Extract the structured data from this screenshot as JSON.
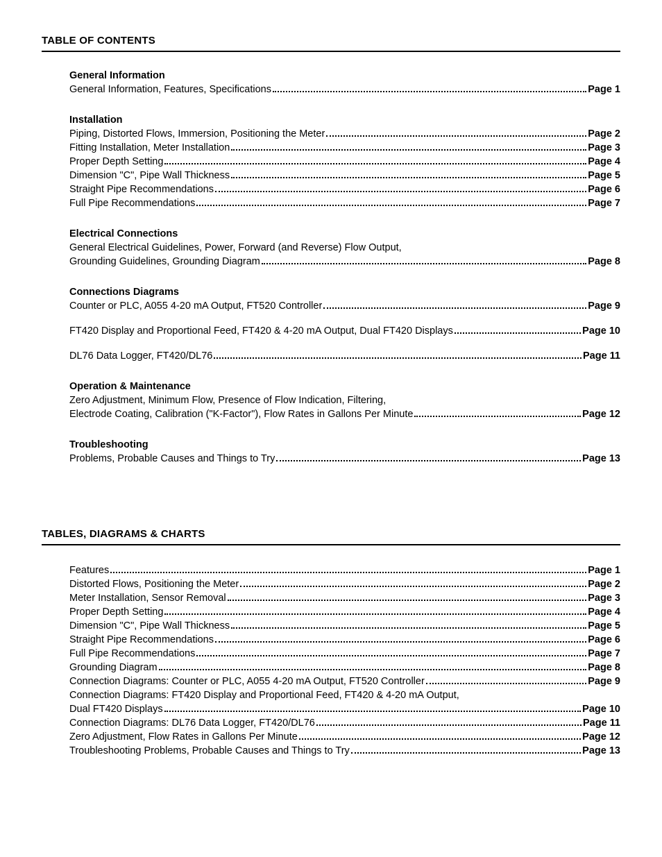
{
  "titles": {
    "toc": "TABLE OF CONTENTS",
    "tdc": "TABLES, DIAGRAMS & CHARTS"
  },
  "toc": {
    "sections": [
      {
        "heading": "General Information",
        "entries": [
          {
            "label": "General Information, Features, Specifications",
            "page": "Page 1"
          }
        ]
      },
      {
        "heading": "Installation",
        "entries": [
          {
            "label": "Piping, Distorted Flows, Immersion, Positioning the Meter ",
            "page": "Page 2"
          },
          {
            "label": "Fitting Installation, Meter Installation",
            "page": "Page 3"
          },
          {
            "label": "Proper Depth Setting ",
            "page": "Page 4"
          },
          {
            "label": "Dimension \"C\", Pipe Wall Thickness",
            "page": "Page 5"
          },
          {
            "label": "Straight Pipe Recommendations ",
            "page": "Page 6"
          },
          {
            "label": "Full Pipe Recommendations",
            "page": "Page 7"
          }
        ]
      },
      {
        "heading": "Electrical Connections",
        "lead": "General Electrical Guidelines, Power, Forward (and Reverse) Flow Output,",
        "entries": [
          {
            "label": "Grounding Guidelines, Grounding Diagram",
            "page": "Page 8"
          }
        ]
      },
      {
        "heading": "Connections Diagrams",
        "entries": [
          {
            "label": "Counter or PLC, A055 4-20 mA Output, FT520 Controller",
            "page": "Page 9"
          }
        ],
        "spaced_entries": [
          {
            "label": "FT420 Display and Proportional Feed, FT420 & 4-20 mA Output, Dual FT420 Displays",
            "page": "Page 10"
          },
          {
            "label": "DL76 Data Logger, FT420/DL76",
            "page": "Page 11"
          }
        ]
      },
      {
        "heading": "Operation & Maintenance",
        "lead": "Zero Adjustment, Minimum Flow, Presence of Flow Indication, Filtering,",
        "entries": [
          {
            "label": "Electrode Coating, Calibration (\"K-Factor\"), Flow Rates in Gallons Per Minute",
            "page": "Page 12"
          }
        ]
      },
      {
        "heading": "Troubleshooting",
        "entries": [
          {
            "label": "Problems, Probable Causes and Things to Try",
            "page": "Page 13"
          }
        ]
      }
    ]
  },
  "tdc": {
    "entries": [
      {
        "label": "Features",
        "page": "Page 1"
      },
      {
        "label": "Distorted Flows, Positioning the Meter",
        "page": "Page 2"
      },
      {
        "label": "Meter Installation, Sensor Removal",
        "page": "Page 3"
      },
      {
        "label": "Proper Depth Setting ",
        "page": "Page 4"
      },
      {
        "label": "Dimension \"C\", Pipe Wall Thickness",
        "page": "Page 5"
      },
      {
        "label": "Straight Pipe Recommendations ",
        "page": "Page 6"
      },
      {
        "label": "Full Pipe Recommendations",
        "page": "Page 7"
      },
      {
        "label": "Grounding Diagram",
        "page": "Page 8"
      },
      {
        "label": "Connection Diagrams: Counter or PLC, A055 4-20 mA Output, FT520 Controller",
        "page": "Page 9"
      }
    ],
    "wrap_lead": "Connection Diagrams: FT420 Display and Proportional Feed, FT420 & 4-20 mA Output,",
    "wrap_entry": {
      "label": "Dual FT420 Displays",
      "page": "Page 10"
    },
    "tail_entries": [
      {
        "label": "Connection Diagrams: DL76 Data Logger, FT420/DL76 ",
        "page": "Page 11"
      },
      {
        "label": "Zero Adjustment, Flow Rates in Gallons Per Minute",
        "page": "Page 12"
      },
      {
        "label": "Troubleshooting Problems, Probable Causes and Things to Try ",
        "page": "Page 13"
      }
    ]
  },
  "style": {
    "text_color": "#000000",
    "background_color": "#ffffff",
    "rule_color": "#000000",
    "heading_fontsize_pt": 11,
    "body_fontsize_pt": 11,
    "page_fontweight": "bold",
    "font_family": "Arial, Helvetica, sans-serif"
  }
}
